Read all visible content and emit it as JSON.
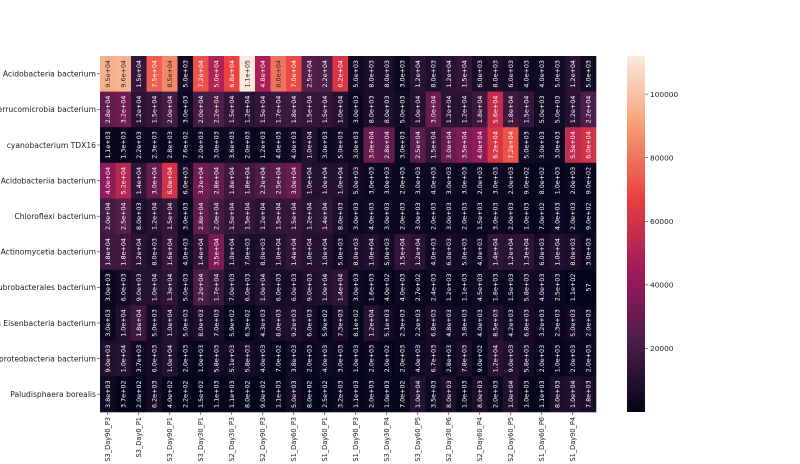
{
  "chart_data": {
    "type": "heatmap",
    "colormap": "rocket",
    "colormap_stops": [
      "#03051A",
      "#4C1D4B",
      "#A11A5B",
      "#E83F3F",
      "#F69C73",
      "#FAEBDD"
    ],
    "vmin": 0,
    "vmax": 112000,
    "annotation_format": ".2g",
    "rows": [
      "Acidobacteria bacterium",
      "Verrucomicrobia bacterium",
      "cyanobacterium TDX16",
      "Acidobacteriia bacterium",
      "Chloroflexi bacterium",
      "Actinomycetia bacterium",
      "Solirubrobacterales bacterium",
      "Candidatus Eisenbacteria bacterium",
      "Deltaproteobacteria bacterium",
      "Paludisphaera borealis"
    ],
    "x_tick_labels": [
      "S3_Day90_P3",
      "S3_Day0_P1",
      "S3_Day90_P1",
      "S3_Day30_P1",
      "S2_Day30_P3",
      "S2_Day90_P3",
      "S1_Day60_P3",
      "S1_Day60_P1",
      "S1_Day90_P3",
      "S3_Day30_P4",
      "S3_Day60_P5",
      "S2_Day30_P6",
      "S2_Day60_P4",
      "S2_Day60_P5",
      "S1_Day60_P6",
      "S1_Day90_P4"
    ],
    "x_tick_every": 2,
    "values": [
      [
        95000,
        96000,
        15000,
        75000,
        85000,
        5000,
        72000,
        50000,
        68000,
        112000,
        48000,
        80000,
        70000,
        25000,
        22000,
        62000,
        5000,
        8000,
        8000,
        3000,
        12000,
        8000,
        12000,
        15000,
        6000,
        8000,
        6000,
        4000,
        4000,
        5000,
        12000,
        5000
      ],
      [
        28000,
        32000,
        12000,
        15000,
        20000,
        3000,
        20000,
        22000,
        15000,
        12000,
        15000,
        17000,
        18000,
        15000,
        15000,
        10000,
        3000,
        8000,
        8000,
        5000,
        10000,
        30000,
        12000,
        12000,
        18000,
        56000,
        18000,
        15000,
        5000,
        5000,
        12000,
        22000
      ],
      [
        1100,
        1300,
        2200,
        2300,
        2800,
        760,
        2000,
        3000,
        3600,
        2000,
        1200,
        4000,
        4000,
        10000,
        3000,
        5000,
        3000,
        30000,
        28000,
        3000,
        25000,
        15000,
        30000,
        35000,
        40000,
        62000,
        72000,
        5000,
        3000,
        3000,
        55000,
        60000
      ],
      [
        40000,
        52000,
        14000,
        30000,
        60000,
        6000,
        32000,
        28000,
        18000,
        18000,
        22000,
        25000,
        30000,
        10000,
        10000,
        10000,
        5000,
        3000,
        3000,
        2000,
        3000,
        4000,
        3000,
        3000,
        2000,
        3000,
        2000,
        900,
        800,
        1000,
        2000,
        900
      ],
      [
        20000,
        25000,
        8000,
        12000,
        15000,
        3000,
        28000,
        20000,
        15000,
        15000,
        12000,
        15000,
        15000,
        12000,
        14000,
        8000,
        3000,
        4000,
        3000,
        2000,
        3000,
        2000,
        3000,
        2000,
        1500,
        3000,
        2000,
        1000,
        700,
        4000,
        2000,
        900
      ],
      [
        18000,
        18000,
        12000,
        8000,
        16000,
        4000,
        14000,
        35000,
        10000,
        7000,
        8000,
        10000,
        14000,
        10000,
        10000,
        5000,
        8000,
        10000,
        5000,
        15000,
        12000,
        4000,
        6000,
        5000,
        4000,
        14000,
        12000,
        13000,
        6000,
        10000,
        8000,
        3000
      ],
      [
        3000,
        6000,
        9000,
        10000,
        13000,
        5000,
        22000,
        17000,
        7000,
        6000,
        10000,
        6000,
        6000,
        9000,
        10000,
        14000,
        3000,
        1600,
        400,
        4000,
        270,
        2400,
        1200,
        1100,
        4500,
        1800,
        1500,
        5800,
        4000,
        2500,
        110,
        57
      ],
      [
        3000,
        10000,
        18000,
        5000,
        10000,
        5000,
        8000,
        7000,
        590,
        630,
        4300,
        8000,
        9200,
        6000,
        590,
        7300,
        810,
        12000,
        5100,
        2300,
        2200,
        6800,
        4800,
        3800,
        4000,
        8500,
        4200,
        6800,
        3200,
        2300,
        5000,
        2000
      ],
      [
        9000,
        10000,
        3700,
        6000,
        10000,
        2000,
        1000,
        5800,
        5100,
        5800,
        4000,
        700,
        3800,
        2000,
        4000,
        3000,
        1000,
        2000,
        200,
        2000,
        4000,
        6700,
        2800,
        7800,
        900,
        12000,
        9000,
        5800,
        2000,
        1000,
        2000,
        2000
      ],
      [
        3800,
        370,
        200,
        6200,
        400,
        215,
        150,
        1100,
        1100,
        800,
        900,
        1100,
        5000,
        800,
        250,
        3200,
        1100,
        2000,
        1000,
        700,
        10000,
        3500,
        8000,
        1000,
        8000,
        2000,
        10000,
        1000,
        1100,
        8000,
        10000,
        7800
      ]
    ],
    "colorbar": {
      "ticks": [
        20000,
        40000,
        60000,
        80000,
        100000
      ],
      "tick_labels": [
        "20000",
        "40000",
        "60000",
        "80000",
        "100000"
      ]
    }
  }
}
